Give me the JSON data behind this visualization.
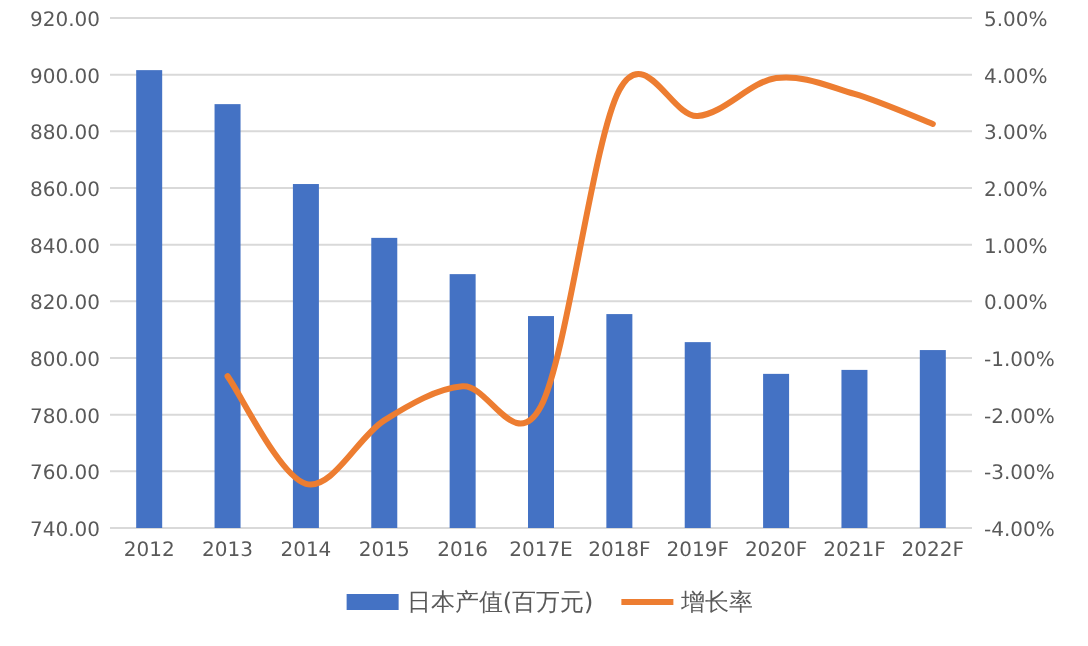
{
  "chart_data": {
    "type": "bar",
    "categories": [
      "2012",
      "2013",
      "2014",
      "2015",
      "2016",
      "2017E",
      "2018F",
      "2019F",
      "2020F",
      "2021F",
      "2022F"
    ],
    "series": [
      {
        "name": "日本产值(百万元)",
        "color": "#4472c4",
        "values": [
          901.6,
          889.6,
          861.4,
          842.4,
          829.6,
          814.8,
          815.5,
          805.6,
          794.4,
          795.8,
          802.8
        ]
      },
      {
        "name": "增长率",
        "type": "line",
        "axis": "y2",
        "color": "#ed7d31",
        "values": [
          null,
          -1.32,
          -3.22,
          -2.1,
          -1.5,
          -1.85,
          3.73,
          3.27,
          3.94,
          3.66,
          3.13
        ]
      }
    ],
    "ylim": [
      740,
      920
    ],
    "yticks": [
      {
        "value": 740,
        "label": "740.00"
      },
      {
        "value": 760,
        "label": "760.00"
      },
      {
        "value": 780,
        "label": "780.00"
      },
      {
        "value": 800,
        "label": "800.00"
      },
      {
        "value": 820,
        "label": "820.00"
      },
      {
        "value": 840,
        "label": "840.00"
      },
      {
        "value": 860,
        "label": "860.00"
      },
      {
        "value": 880,
        "label": "880.00"
      },
      {
        "value": 900,
        "label": "900.00"
      },
      {
        "value": 920,
        "label": "920.00"
      }
    ],
    "y2lim": [
      -4,
      5
    ],
    "y2ticks": [
      {
        "value": -4,
        "label": "-4.00%"
      },
      {
        "value": -3,
        "label": "-3.00%"
      },
      {
        "value": -2,
        "label": "-2.00%"
      },
      {
        "value": -1,
        "label": "-1.00%"
      },
      {
        "value": 0,
        "label": "0.00%"
      },
      {
        "value": 1,
        "label": "1.00%"
      },
      {
        "value": 2,
        "label": "2.00%"
      },
      {
        "value": 3,
        "label": "3.00%"
      },
      {
        "value": 4,
        "label": "4.00%"
      },
      {
        "value": 5,
        "label": "5.00%"
      }
    ],
    "grid": "y",
    "legend": "bottom"
  }
}
